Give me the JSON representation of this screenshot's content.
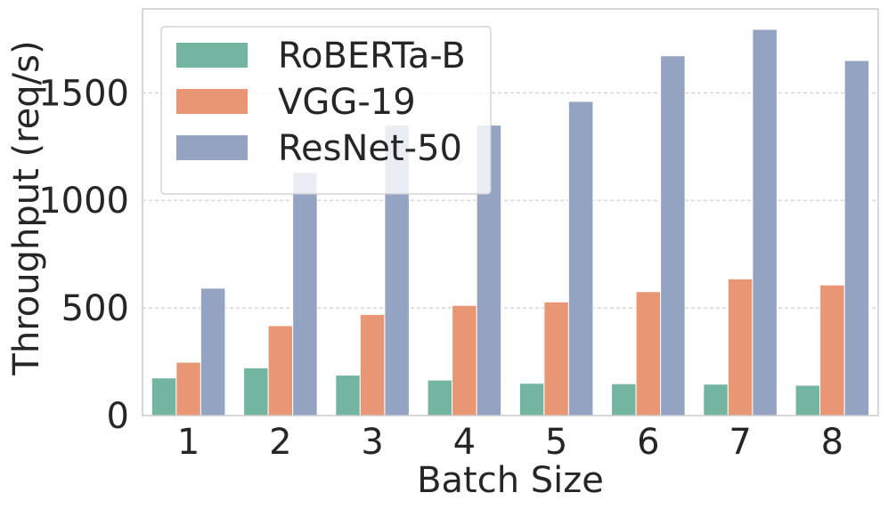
{
  "chart_data": {
    "type": "bar",
    "title": "",
    "xlabel": "Batch Size",
    "ylabel": "Throughput (req/s)",
    "categories": [
      "1",
      "2",
      "3",
      "4",
      "5",
      "6",
      "7",
      "8"
    ],
    "ylim": [
      0,
      1890
    ],
    "yticks": [
      0,
      500,
      1000,
      1500
    ],
    "ytick_labels": [
      "0",
      "500",
      "1000",
      "1500"
    ],
    "grid": "y-dashed",
    "legend_position": "top-left",
    "series": [
      {
        "name": "RoBERTa-B",
        "color": "#72b6a1",
        "values": [
          175,
          222,
          188,
          165,
          150,
          148,
          146,
          141
        ]
      },
      {
        "name": "VGG-19",
        "color": "#e99675",
        "values": [
          248,
          418,
          470,
          512,
          528,
          576,
          635,
          607
        ]
      },
      {
        "name": "ResNet-50",
        "color": "#95a3c3",
        "values": [
          592,
          1130,
          1350,
          1350,
          1460,
          1672,
          1795,
          1650
        ]
      }
    ]
  }
}
